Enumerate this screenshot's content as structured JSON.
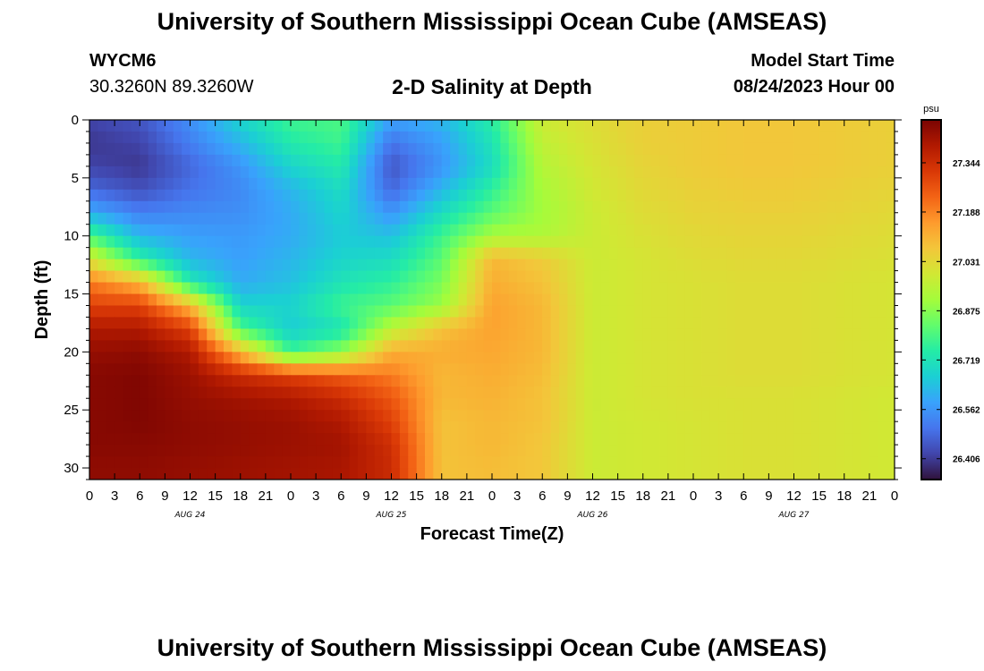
{
  "header": {
    "title": "University of Southern Mississippi Ocean Cube (AMSEAS)",
    "station_id": "WYCM6",
    "coordinates": "30.3260N  89.3260W",
    "subtitle": "2-D Salinity at Depth",
    "model_start_label": "Model Start Time",
    "model_start_value": "08/24/2023 Hour 00"
  },
  "footer": {
    "title": "University of Southern Mississippi Ocean Cube (AMSEAS)"
  },
  "colors": {
    "colormap": [
      "#30123b",
      "#4145ab",
      "#4675ed",
      "#39a2fc",
      "#1bcfd4",
      "#24eca6",
      "#61fc6c",
      "#a4fc3b",
      "#d1e834",
      "#f3c63a",
      "#fe9b2d",
      "#f36315",
      "#d93806",
      "#b11901",
      "#7a0402"
    ]
  },
  "chart_data": {
    "type": "heatmap",
    "title": "2-D Salinity at Depth",
    "xlabel": "Forecast Time(Z)",
    "ylabel": "Depth (ft)",
    "x_hours": [
      0,
      96
    ],
    "xlim": [
      0,
      96
    ],
    "ylim": [
      0,
      31
    ],
    "x_tick_labels": [
      "0",
      "3",
      "6",
      "9",
      "12",
      "15",
      "18",
      "21",
      "0",
      "3",
      "6",
      "9",
      "12",
      "15",
      "18",
      "21",
      "0",
      "3",
      "6",
      "9",
      "12",
      "15",
      "18",
      "21",
      "0",
      "3",
      "6",
      "9",
      "12",
      "15",
      "18",
      "21",
      "0"
    ],
    "y_ticks": [
      0,
      5,
      10,
      15,
      20,
      25,
      30
    ],
    "day_labels": [
      {
        "label": "AUG 24",
        "center_hour": 12
      },
      {
        "label": "AUG 25",
        "center_hour": 36
      },
      {
        "label": "AUG 26",
        "center_hour": 60
      },
      {
        "label": "AUG 27",
        "center_hour": 84
      }
    ],
    "colorbar": {
      "unit": "psu",
      "vmin": 26.34,
      "vmax": 27.48,
      "tick_labels": [
        "27.344",
        "27.188",
        "27.031",
        "26.875",
        "26.719",
        "26.562",
        "26.406"
      ],
      "tick_values": [
        27.344,
        27.188,
        27.031,
        26.875,
        26.719,
        26.562,
        26.406
      ]
    },
    "depth_levels": [
      0,
      2,
      4,
      6,
      8,
      10,
      12,
      14,
      16,
      18,
      20,
      22,
      24,
      26,
      28,
      30
    ],
    "time_nodes": [
      0,
      6,
      12,
      18,
      24,
      30,
      36,
      42,
      48,
      54,
      60,
      66,
      72,
      78,
      84,
      90,
      96
    ],
    "values": [
      [
        26.42,
        26.45,
        26.55,
        26.68,
        26.78,
        26.8,
        26.58,
        26.62,
        26.75,
        26.98,
        27.02,
        27.05,
        27.06,
        27.07,
        27.07,
        27.06,
        27.05
      ],
      [
        26.4,
        26.42,
        26.52,
        26.62,
        26.74,
        26.78,
        26.5,
        26.58,
        26.72,
        26.96,
        27.01,
        27.05,
        27.06,
        27.07,
        27.07,
        27.06,
        27.05
      ],
      [
        26.42,
        26.4,
        26.48,
        26.56,
        26.68,
        26.74,
        26.45,
        26.56,
        26.7,
        26.94,
        27.0,
        27.04,
        27.06,
        27.07,
        27.07,
        27.06,
        27.05
      ],
      [
        26.48,
        26.44,
        26.5,
        26.54,
        26.62,
        26.7,
        26.48,
        26.62,
        26.76,
        26.92,
        26.99,
        27.03,
        27.05,
        27.06,
        27.06,
        27.05,
        27.04
      ],
      [
        26.6,
        26.52,
        26.54,
        26.55,
        26.6,
        26.68,
        26.56,
        26.7,
        26.82,
        26.91,
        26.98,
        27.02,
        27.04,
        27.05,
        27.05,
        27.04,
        27.03
      ],
      [
        26.8,
        26.62,
        26.58,
        26.57,
        26.6,
        26.66,
        26.64,
        26.78,
        26.92,
        26.93,
        26.98,
        27.01,
        27.03,
        27.04,
        27.04,
        27.03,
        27.02
      ],
      [
        27.0,
        26.76,
        26.62,
        26.58,
        26.62,
        26.68,
        26.7,
        26.82,
        27.1,
        27.06,
        26.98,
        27.0,
        27.02,
        27.03,
        27.03,
        27.02,
        27.01
      ],
      [
        27.2,
        27.1,
        26.74,
        26.6,
        26.64,
        26.72,
        26.76,
        26.86,
        27.12,
        27.08,
        26.98,
        27.0,
        27.01,
        27.02,
        27.02,
        27.01,
        27.0
      ],
      [
        27.3,
        27.3,
        27.1,
        26.68,
        26.68,
        26.78,
        26.82,
        26.9,
        27.14,
        27.1,
        26.98,
        27.0,
        27.01,
        27.02,
        27.02,
        27.01,
        27.0
      ],
      [
        27.4,
        27.4,
        27.3,
        26.8,
        26.66,
        26.72,
        26.95,
        27.08,
        27.14,
        27.1,
        26.98,
        27.0,
        27.01,
        27.02,
        27.02,
        27.01,
        27.0
      ],
      [
        27.44,
        27.45,
        27.4,
        27.1,
        26.78,
        26.88,
        27.12,
        27.12,
        27.13,
        27.1,
        26.98,
        27.0,
        27.01,
        27.02,
        27.02,
        27.01,
        27.0
      ],
      [
        27.46,
        27.47,
        27.43,
        27.35,
        27.3,
        27.25,
        27.2,
        27.1,
        27.12,
        27.09,
        26.98,
        27.0,
        27.01,
        27.02,
        27.02,
        27.01,
        27.0
      ],
      [
        27.46,
        27.47,
        27.44,
        27.42,
        27.4,
        27.35,
        27.26,
        27.1,
        27.11,
        27.08,
        26.98,
        27.0,
        27.01,
        27.01,
        27.01,
        27.0,
        26.99
      ],
      [
        27.46,
        27.47,
        27.45,
        27.44,
        27.43,
        27.4,
        27.3,
        27.08,
        27.1,
        27.08,
        26.98,
        26.99,
        27.0,
        27.01,
        27.01,
        27.0,
        26.99
      ],
      [
        27.46,
        27.46,
        27.45,
        27.44,
        27.43,
        27.42,
        27.34,
        27.08,
        27.1,
        27.07,
        26.98,
        26.99,
        27.0,
        27.01,
        27.01,
        27.0,
        26.99
      ],
      [
        27.45,
        27.45,
        27.44,
        27.43,
        27.42,
        27.41,
        27.35,
        27.08,
        27.09,
        27.07,
        26.98,
        26.99,
        27.0,
        27.01,
        27.01,
        27.0,
        26.99
      ]
    ]
  }
}
